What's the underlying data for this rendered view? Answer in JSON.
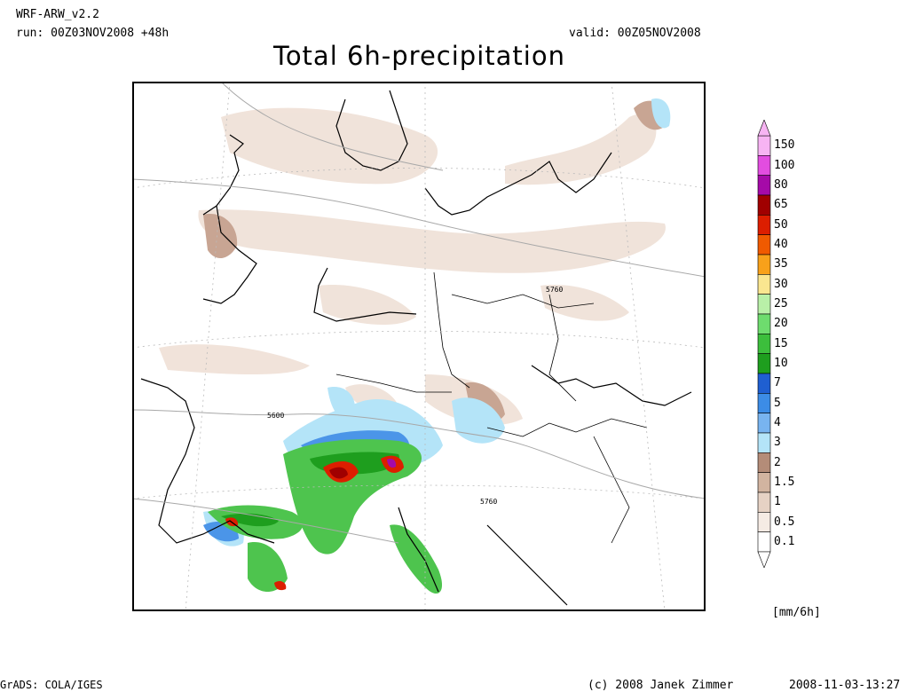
{
  "header": {
    "model": "WRF-ARW_v2.2",
    "run": "run: 00Z03NOV2008 +48h",
    "valid": "valid: 00Z05NOV2008",
    "title": "Total 6h-precipitation"
  },
  "map": {
    "contour_labels": [
      {
        "text": "5760",
        "lon_label": "north"
      },
      {
        "text": "5600",
        "lon_label": "west"
      },
      {
        "text": "5760",
        "lon_label": "south"
      }
    ]
  },
  "legend": {
    "unit": "[mm/6h]",
    "levels": [
      {
        "label": "150",
        "color": "#f7b4f3"
      },
      {
        "label": "100",
        "color": "#e24de0"
      },
      {
        "label": "80",
        "color": "#a50aa8"
      },
      {
        "label": "65",
        "color": "#a00000"
      },
      {
        "label": "50",
        "color": "#dc1e00"
      },
      {
        "label": "40",
        "color": "#f05a00"
      },
      {
        "label": "35",
        "color": "#f8a11a"
      },
      {
        "label": "30",
        "color": "#fae690"
      },
      {
        "label": "25",
        "color": "#b9f0a8"
      },
      {
        "label": "20",
        "color": "#6edc6e"
      },
      {
        "label": "15",
        "color": "#3cbe3c"
      },
      {
        "label": "10",
        "color": "#1e9e1e"
      },
      {
        "label": "7",
        "color": "#1f5fd1"
      },
      {
        "label": "5",
        "color": "#3c8ce6"
      },
      {
        "label": "4",
        "color": "#78b4f0"
      },
      {
        "label": "3",
        "color": "#b4e4f8"
      },
      {
        "label": "2",
        "color": "#b48c78"
      },
      {
        "label": "1.5",
        "color": "#d2b4a0"
      },
      {
        "label": "1",
        "color": "#e6d2c4"
      },
      {
        "label": "0.5",
        "color": "#f5ebe4"
      },
      {
        "label": "0.1",
        "color": "#ffffff"
      }
    ]
  },
  "footer": {
    "left": "GrADS: COLA/IGES",
    "center": "(c) 2008 Janek Zimmer",
    "right": "2008-11-03-13:27"
  }
}
